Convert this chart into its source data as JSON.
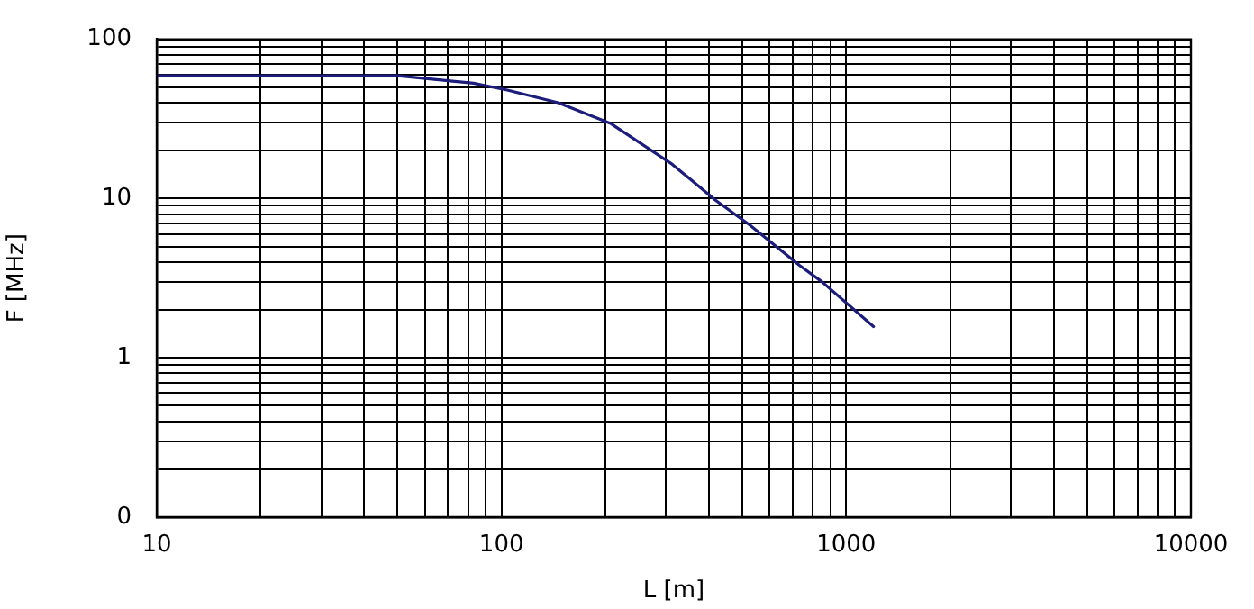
{
  "chart_data": {
    "type": "line",
    "xlabel": "L [m]",
    "ylabel": "F [MHz]",
    "log": "xy",
    "grid": true,
    "legend": false,
    "marker": "none",
    "line_style": "solid",
    "xlim": [
      10,
      10000
    ],
    "ylim": [
      0.1,
      100
    ],
    "xticks": [
      10,
      {
        "value": 20,
        "label": null
      },
      {
        "value": 30,
        "label": null
      },
      {
        "value": 40,
        "label": null
      },
      {
        "value": 50,
        "label": null
      },
      {
        "value": 60,
        "label": null
      },
      {
        "value": 70,
        "label": null
      },
      {
        "value": 80,
        "label": null
      },
      {
        "value": 90,
        "label": null
      },
      100,
      {
        "value": 200,
        "label": null
      },
      {
        "value": 300,
        "label": null
      },
      {
        "value": 400,
        "label": null
      },
      {
        "value": 500,
        "label": null
      },
      {
        "value": 600,
        "label": null
      },
      {
        "value": 700,
        "label": null
      },
      {
        "value": 800,
        "label": null
      },
      {
        "value": 900,
        "label": null
      },
      1000,
      {
        "value": 2000,
        "label": null
      },
      {
        "value": 3000,
        "label": null
      },
      {
        "value": 4000,
        "label": null
      },
      {
        "value": 5000,
        "label": null
      },
      {
        "value": 6000,
        "label": null
      },
      {
        "value": 7000,
        "label": null
      },
      {
        "value": 8000,
        "label": null
      },
      {
        "value": 9000,
        "label": null
      },
      10000
    ],
    "yticks": [
      {
        "value": 0.1,
        "label": "0"
      },
      {
        "value": 0.2,
        "label": null
      },
      {
        "value": 0.3,
        "label": null
      },
      {
        "value": 0.4,
        "label": null
      },
      {
        "value": 0.5,
        "label": null
      },
      {
        "value": 0.6,
        "label": null
      },
      {
        "value": 0.7,
        "label": null
      },
      {
        "value": 0.8,
        "label": null
      },
      {
        "value": 0.9,
        "label": null
      },
      1,
      {
        "value": 2,
        "label": null
      },
      {
        "value": 3,
        "label": null
      },
      {
        "value": 4,
        "label": null
      },
      {
        "value": 5,
        "label": null
      },
      {
        "value": 6,
        "label": null
      },
      {
        "value": 7,
        "label": null
      },
      {
        "value": 8,
        "label": null
      },
      {
        "value": 9,
        "label": null
      },
      10,
      {
        "value": 20,
        "label": null
      },
      {
        "value": 30,
        "label": null
      },
      {
        "value": 40,
        "label": null
      },
      {
        "value": 50,
        "label": null
      },
      {
        "value": 60,
        "label": null
      },
      {
        "value": 70,
        "label": null
      },
      {
        "value": 80,
        "label": null
      },
      {
        "value": 90,
        "label": null
      },
      100
    ],
    "series": [
      {
        "color": "#1c1c7c",
        "x": [
          10,
          20,
          30,
          50,
          83,
          104,
          146,
          208,
          313,
          417,
          526,
          733,
          851,
          1200
        ],
        "values": [
          59,
          59,
          59,
          59,
          53,
          48,
          40,
          29.5,
          16.4,
          9.8,
          6.8,
          3.8,
          3.0,
          1.57
        ]
      }
    ]
  }
}
